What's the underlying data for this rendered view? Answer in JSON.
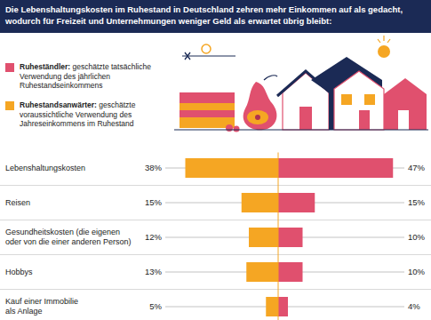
{
  "chart_data": {
    "type": "bar",
    "orientation": "horizontal",
    "title": "Die Lebenshaltungskosten im Ruhestand in Deutschland zehren mehr Einkommen auf als gedacht, wodurch für Freizeit und Unternehmungen weniger Geld als erwartet übrig bleibt:",
    "categories": [
      "Lebenshaltungskosten",
      "Reisen",
      "Gesundheitskosten (die eigenen\noder von die einer anderen Person)",
      "Hobbys",
      "Kauf einer Immobilie\nals Anlage"
    ],
    "series": [
      {
        "name": "Ruheständler: geschätzte tatsächliche Verwendung des jährlichen Ruhestandseinkommens",
        "color": "#e0506e",
        "values": [
          47,
          15,
          10,
          10,
          4
        ],
        "value_labels": [
          "47%",
          "15%",
          "10%",
          "10%",
          "4%"
        ]
      },
      {
        "name": "Ruhestandsanwärter: geschätzte voraussichtliche Verwendung des Jahreseinkommens im Ruhestand",
        "color": "#f5a623",
        "values": [
          38,
          15,
          12,
          13,
          5
        ],
        "value_labels": [
          "38%",
          "15%",
          "12%",
          "13%",
          "5%"
        ]
      }
    ],
    "xlim": [
      0,
      50
    ],
    "tick_labels": false,
    "data_labels": true,
    "grid": false,
    "legend": "top-left"
  }
}
